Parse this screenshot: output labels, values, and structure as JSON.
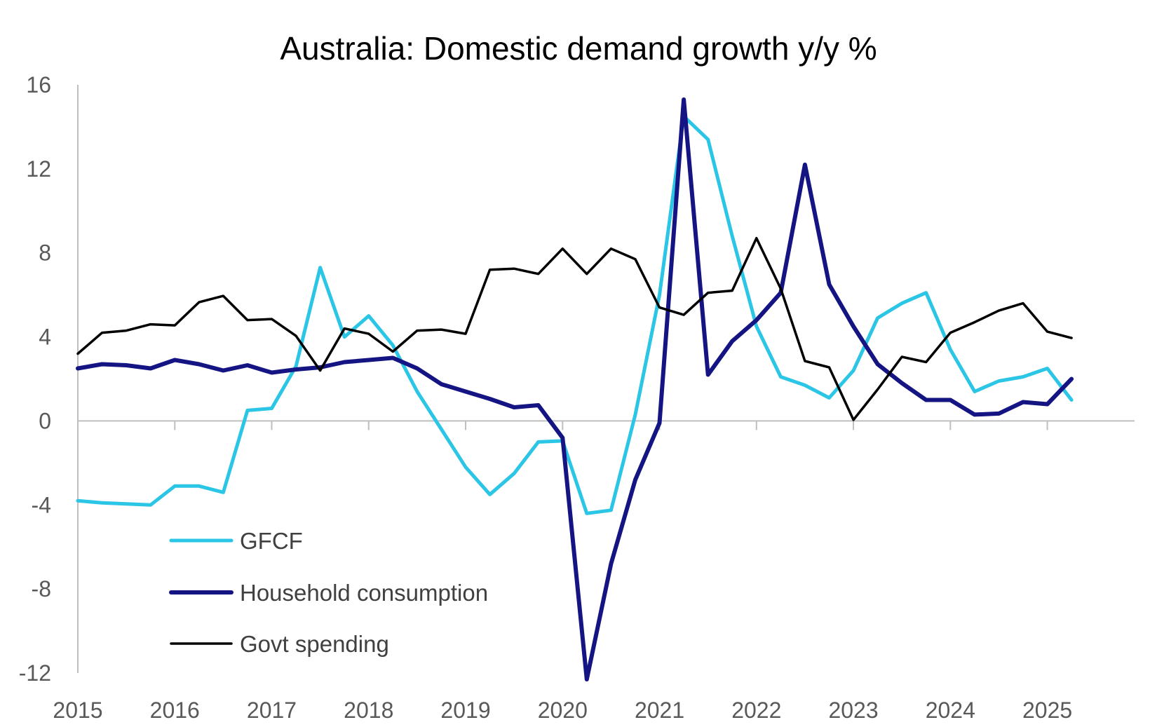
{
  "chart_data": {
    "type": "line",
    "title": "Australia: Domestic demand growth y/y %",
    "xlabel": "",
    "ylabel": "",
    "ylim": [
      -12,
      16
    ],
    "yticks": [
      "16",
      "12",
      "8",
      "4",
      "0",
      "-4",
      "-8",
      "-12"
    ],
    "xlim": [
      2015,
      2025.9
    ],
    "xticks": [
      "2015",
      "2016",
      "2017",
      "2018",
      "2019",
      "2020",
      "2021",
      "2022",
      "2023",
      "2024",
      "2025"
    ],
    "grid": false,
    "legend_position": "bottom-left",
    "x": [
      2015.0,
      2015.25,
      2015.5,
      2015.75,
      2016.0,
      2016.25,
      2016.5,
      2016.75,
      2017.0,
      2017.25,
      2017.5,
      2017.75,
      2018.0,
      2018.25,
      2018.5,
      2018.75,
      2019.0,
      2019.25,
      2019.5,
      2019.75,
      2020.0,
      2020.25,
      2020.5,
      2020.75,
      2021.0,
      2021.25,
      2021.5,
      2021.75,
      2022.0,
      2022.25,
      2022.5,
      2022.75,
      2023.0,
      2023.25,
      2023.5,
      2023.75,
      2024.0,
      2024.25,
      2024.5,
      2024.75,
      2025.0,
      2025.25
    ],
    "series": [
      {
        "name": "GFCF",
        "color": "#2BC5E6",
        "width": 5,
        "values": [
          -3.8,
          -3.9,
          -3.95,
          -4.0,
          -3.1,
          -3.1,
          -3.4,
          0.5,
          0.6,
          2.6,
          7.3,
          4.0,
          5.0,
          3.6,
          1.4,
          -0.4,
          -2.2,
          -3.5,
          -2.5,
          -1.0,
          -0.95,
          -4.4,
          -4.25,
          0.3,
          6.0,
          14.5,
          13.4,
          8.8,
          4.5,
          2.1,
          1.7,
          1.1,
          2.4,
          4.9,
          5.6,
          6.1,
          3.4,
          1.4,
          1.9,
          2.1,
          2.5,
          1.0
        ]
      },
      {
        "name": "Household consumption",
        "color": "#141483",
        "width": 6,
        "values": [
          2.5,
          2.7,
          2.65,
          2.5,
          2.9,
          2.7,
          2.4,
          2.65,
          2.3,
          2.45,
          2.55,
          2.8,
          2.9,
          3.0,
          2.5,
          1.75,
          1.4,
          1.05,
          0.65,
          0.75,
          -0.8,
          -12.3,
          -6.8,
          -2.8,
          -0.1,
          15.3,
          2.2,
          3.8,
          4.8,
          6.1,
          12.2,
          6.5,
          4.5,
          2.7,
          1.8,
          1.0,
          1.0,
          0.3,
          0.35,
          0.9,
          0.8,
          2.0
        ]
      },
      {
        "name": "Govt spending",
        "color": "#000000",
        "width": 3.5,
        "values": [
          3.2,
          4.2,
          4.3,
          4.6,
          4.55,
          5.65,
          5.95,
          4.8,
          4.85,
          4.05,
          2.4,
          4.4,
          4.15,
          3.3,
          4.3,
          4.35,
          4.15,
          7.2,
          7.25,
          7.0,
          8.2,
          7.0,
          8.2,
          7.7,
          5.4,
          5.05,
          6.1,
          6.2,
          8.7,
          6.3,
          2.85,
          2.55,
          0.05,
          1.5,
          3.05,
          2.8,
          4.2,
          4.7,
          5.25,
          5.6,
          4.25,
          3.95
        ]
      }
    ]
  }
}
